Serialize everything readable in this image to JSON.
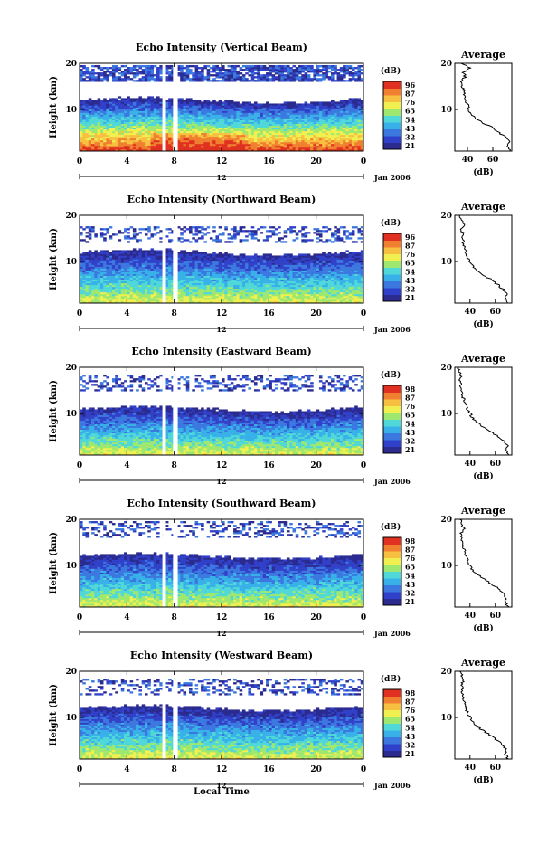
{
  "figure": {
    "xlabel": "Local Time",
    "date_label": "Jan 2006",
    "noon_label": "12",
    "ylabel": "Height (km)",
    "colorbar_unit": "(dB)",
    "avg_title": "Average",
    "avg_xlabel": "(dB)"
  },
  "colors": {
    "scale": [
      "#2b2a8f",
      "#3040c8",
      "#3a78e0",
      "#38b0e8",
      "#50d8d8",
      "#9ee870",
      "#f0f050",
      "#f8c040",
      "#f08030",
      "#e03020"
    ],
    "gap": "#ffffff"
  },
  "chart_data": [
    {
      "type": "heatmap",
      "title": "Echo Intensity (Vertical Beam)",
      "xlim": [
        0,
        24
      ],
      "ylim": [
        1,
        20
      ],
      "x_ticks": [
        "0",
        "4",
        "8",
        "12",
        "16",
        "20",
        "0"
      ],
      "y_ticks": [
        "20",
        "10"
      ],
      "colorbar_ticks": [
        "96",
        "87",
        "76",
        "65",
        "54",
        "43",
        "32",
        "21"
      ],
      "echo_top_km": 12,
      "layer_top_km": 19,
      "max_level": 9,
      "data_gaps_hours": [
        [
          7.0,
          7.3
        ],
        [
          7.9,
          8.3
        ]
      ],
      "average_profile": {
        "x_ticks": [
          "40",
          "60"
        ],
        "xlim": [
          30,
          75
        ],
        "ylim": [
          1,
          20
        ],
        "y_ticks": [
          "20",
          "10"
        ],
        "height_km": [
          1,
          2,
          3,
          4,
          5,
          6,
          7,
          8,
          9,
          10,
          11,
          12,
          13,
          14,
          15,
          16,
          17,
          18,
          19,
          20
        ],
        "value_db": [
          74,
          72,
          73,
          70,
          65,
          60,
          53,
          47,
          43,
          41,
          40,
          38,
          37,
          37,
          36,
          35,
          38,
          37,
          42,
          35
        ]
      }
    },
    {
      "type": "heatmap",
      "title": "Echo Intensity (Northward Beam)",
      "xlim": [
        0,
        24
      ],
      "ylim": [
        1,
        20
      ],
      "x_ticks": [
        "0",
        "4",
        "8",
        "12",
        "16",
        "20",
        "0"
      ],
      "y_ticks": [
        "20",
        "10"
      ],
      "colorbar_ticks": [
        "96",
        "87",
        "76",
        "65",
        "54",
        "43",
        "32",
        "21"
      ],
      "echo_top_km": 12,
      "layer_top_km": 17,
      "max_level": 6,
      "data_gaps_hours": [
        [
          7.0,
          7.3
        ],
        [
          7.9,
          8.3
        ]
      ],
      "average_profile": {
        "x_ticks": [
          "40",
          "60"
        ],
        "xlim": [
          28,
          73
        ],
        "ylim": [
          1,
          20
        ],
        "y_ticks": [
          "20",
          "10"
        ],
        "height_km": [
          1,
          2,
          3,
          4,
          5,
          6,
          7,
          8,
          9,
          10,
          11,
          12,
          13,
          14,
          15,
          16,
          17,
          18,
          19,
          20
        ],
        "value_db": [
          70,
          68,
          69,
          66,
          62,
          57,
          51,
          46,
          42,
          40,
          38,
          37,
          36,
          35,
          34,
          35,
          33,
          36,
          33,
          32
        ]
      }
    },
    {
      "type": "heatmap",
      "title": "Echo Intensity (Eastward Beam)",
      "xlim": [
        0,
        24
      ],
      "ylim": [
        1,
        20
      ],
      "x_ticks": [
        "0",
        "4",
        "8",
        "12",
        "16",
        "20",
        "0"
      ],
      "y_ticks": [
        "20",
        "10"
      ],
      "colorbar_ticks": [
        "98",
        "87",
        "76",
        "65",
        "54",
        "43",
        "32",
        "21"
      ],
      "echo_top_km": 11,
      "layer_top_km": 18,
      "max_level": 6,
      "data_gaps_hours": [
        [
          7.0,
          7.3
        ],
        [
          7.9,
          8.3
        ]
      ],
      "average_profile": {
        "x_ticks": [
          "40",
          "60"
        ],
        "xlim": [
          28,
          73
        ],
        "ylim": [
          1,
          20
        ],
        "y_ticks": [
          "20",
          "10"
        ],
        "height_km": [
          1,
          2,
          3,
          4,
          5,
          6,
          7,
          8,
          9,
          10,
          11,
          12,
          13,
          14,
          15,
          16,
          17,
          18,
          19,
          20
        ],
        "value_db": [
          71,
          69,
          70,
          67,
          62,
          57,
          51,
          46,
          42,
          40,
          38,
          36,
          35,
          34,
          34,
          33,
          32,
          33,
          32,
          31
        ]
      }
    },
    {
      "type": "heatmap",
      "title": "Echo Intensity (Southward Beam)",
      "xlim": [
        0,
        24
      ],
      "ylim": [
        1,
        20
      ],
      "x_ticks": [
        "0",
        "4",
        "8",
        "12",
        "16",
        "20",
        "0"
      ],
      "y_ticks": [
        "20",
        "10"
      ],
      "colorbar_ticks": [
        "98",
        "87",
        "76",
        "65",
        "54",
        "43",
        "32",
        "21"
      ],
      "echo_top_km": 12,
      "layer_top_km": 19,
      "max_level": 6,
      "data_gaps_hours": [
        [
          7.0,
          7.3
        ],
        [
          7.9,
          8.3
        ]
      ],
      "average_profile": {
        "x_ticks": [
          "40",
          "60"
        ],
        "xlim": [
          28,
          73
        ],
        "ylim": [
          1,
          20
        ],
        "y_ticks": [
          "20",
          "10"
        ],
        "height_km": [
          1,
          2,
          3,
          4,
          5,
          6,
          7,
          8,
          9,
          10,
          11,
          12,
          13,
          14,
          15,
          16,
          17,
          18,
          19,
          20
        ],
        "value_db": [
          70,
          68,
          69,
          66,
          62,
          57,
          51,
          46,
          42,
          40,
          38,
          37,
          36,
          35,
          34,
          34,
          33,
          35,
          34,
          32
        ]
      }
    },
    {
      "type": "heatmap",
      "title": "Echo Intensity (Westward Beam)",
      "xlim": [
        0,
        24
      ],
      "ylim": [
        1,
        20
      ],
      "x_ticks": [
        "0",
        "4",
        "8",
        "12",
        "16",
        "20",
        "0"
      ],
      "y_ticks": [
        "20",
        "10"
      ],
      "colorbar_ticks": [
        "98",
        "87",
        "76",
        "65",
        "54",
        "43",
        "32",
        "21"
      ],
      "echo_top_km": 12,
      "layer_top_km": 18,
      "max_level": 6,
      "data_gaps_hours": [
        [
          7.0,
          7.3
        ],
        [
          7.9,
          8.3
        ]
      ],
      "average_profile": {
        "x_ticks": [
          "40",
          "60"
        ],
        "xlim": [
          28,
          73
        ],
        "ylim": [
          1,
          20
        ],
        "y_ticks": [
          "20",
          "10"
        ],
        "height_km": [
          1,
          2,
          3,
          4,
          5,
          6,
          7,
          8,
          9,
          10,
          11,
          12,
          13,
          14,
          15,
          16,
          17,
          18,
          19,
          20
        ],
        "value_db": [
          70,
          68,
          69,
          66,
          62,
          57,
          51,
          46,
          42,
          40,
          38,
          37,
          36,
          35,
          34,
          34,
          33,
          35,
          34,
          32
        ]
      }
    }
  ]
}
